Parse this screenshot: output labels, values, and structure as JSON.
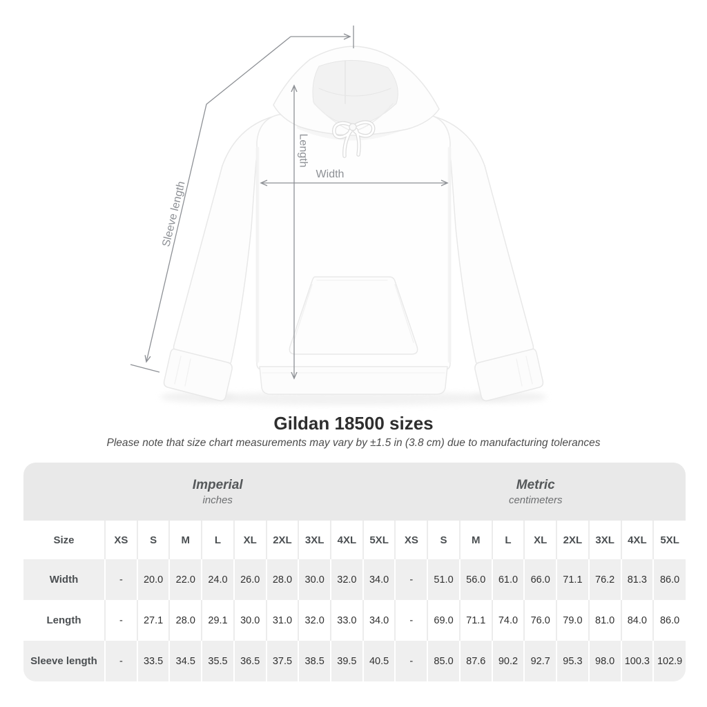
{
  "title": "Gildan 18500 sizes",
  "subtitle": "Please note that size chart measurements may vary by ±1.5 in (3.8 cm) due to manufacturing tolerances",
  "figure": {
    "product": "white hooded sweatshirt",
    "measurement_labels": {
      "width": "Width",
      "length": "Length",
      "sleeve": "Sleeve length"
    }
  },
  "chart_data": {
    "type": "table",
    "title": "Gildan 18500 sizes",
    "size_column_header": "Size",
    "sections": [
      {
        "label": "Imperial",
        "unit": "inches"
      },
      {
        "label": "Metric",
        "unit": "centimeters"
      }
    ],
    "sizes": [
      "XS",
      "S",
      "M",
      "L",
      "XL",
      "2XL",
      "3XL",
      "4XL",
      "5XL"
    ],
    "rows": [
      {
        "label": "Width",
        "imperial": [
          "-",
          "20.0",
          "22.0",
          "24.0",
          "26.0",
          "28.0",
          "30.0",
          "32.0",
          "34.0"
        ],
        "metric": [
          "-",
          "51.0",
          "56.0",
          "61.0",
          "66.0",
          "71.1",
          "76.2",
          "81.3",
          "86.0"
        ]
      },
      {
        "label": "Length",
        "imperial": [
          "-",
          "27.1",
          "28.0",
          "29.1",
          "30.0",
          "31.0",
          "32.0",
          "33.0",
          "34.0"
        ],
        "metric": [
          "-",
          "69.0",
          "71.1",
          "74.0",
          "76.0",
          "79.0",
          "81.0",
          "84.0",
          "86.0"
        ]
      },
      {
        "label": "Sleeve length",
        "imperial": [
          "-",
          "33.5",
          "34.5",
          "35.5",
          "36.5",
          "37.5",
          "38.5",
          "39.5",
          "40.5"
        ],
        "metric": [
          "-",
          "85.0",
          "87.6",
          "90.2",
          "92.7",
          "95.3",
          "98.0",
          "100.3",
          "102.9"
        ]
      }
    ]
  },
  "colors": {
    "annotation_gray": "#8d9095",
    "units_band_gray": "#e9e9e9",
    "stripe_gray": "#efefef",
    "header_text": "#4b4f52",
    "value_text": "#303030",
    "title_text": "#2e2e2e"
  }
}
